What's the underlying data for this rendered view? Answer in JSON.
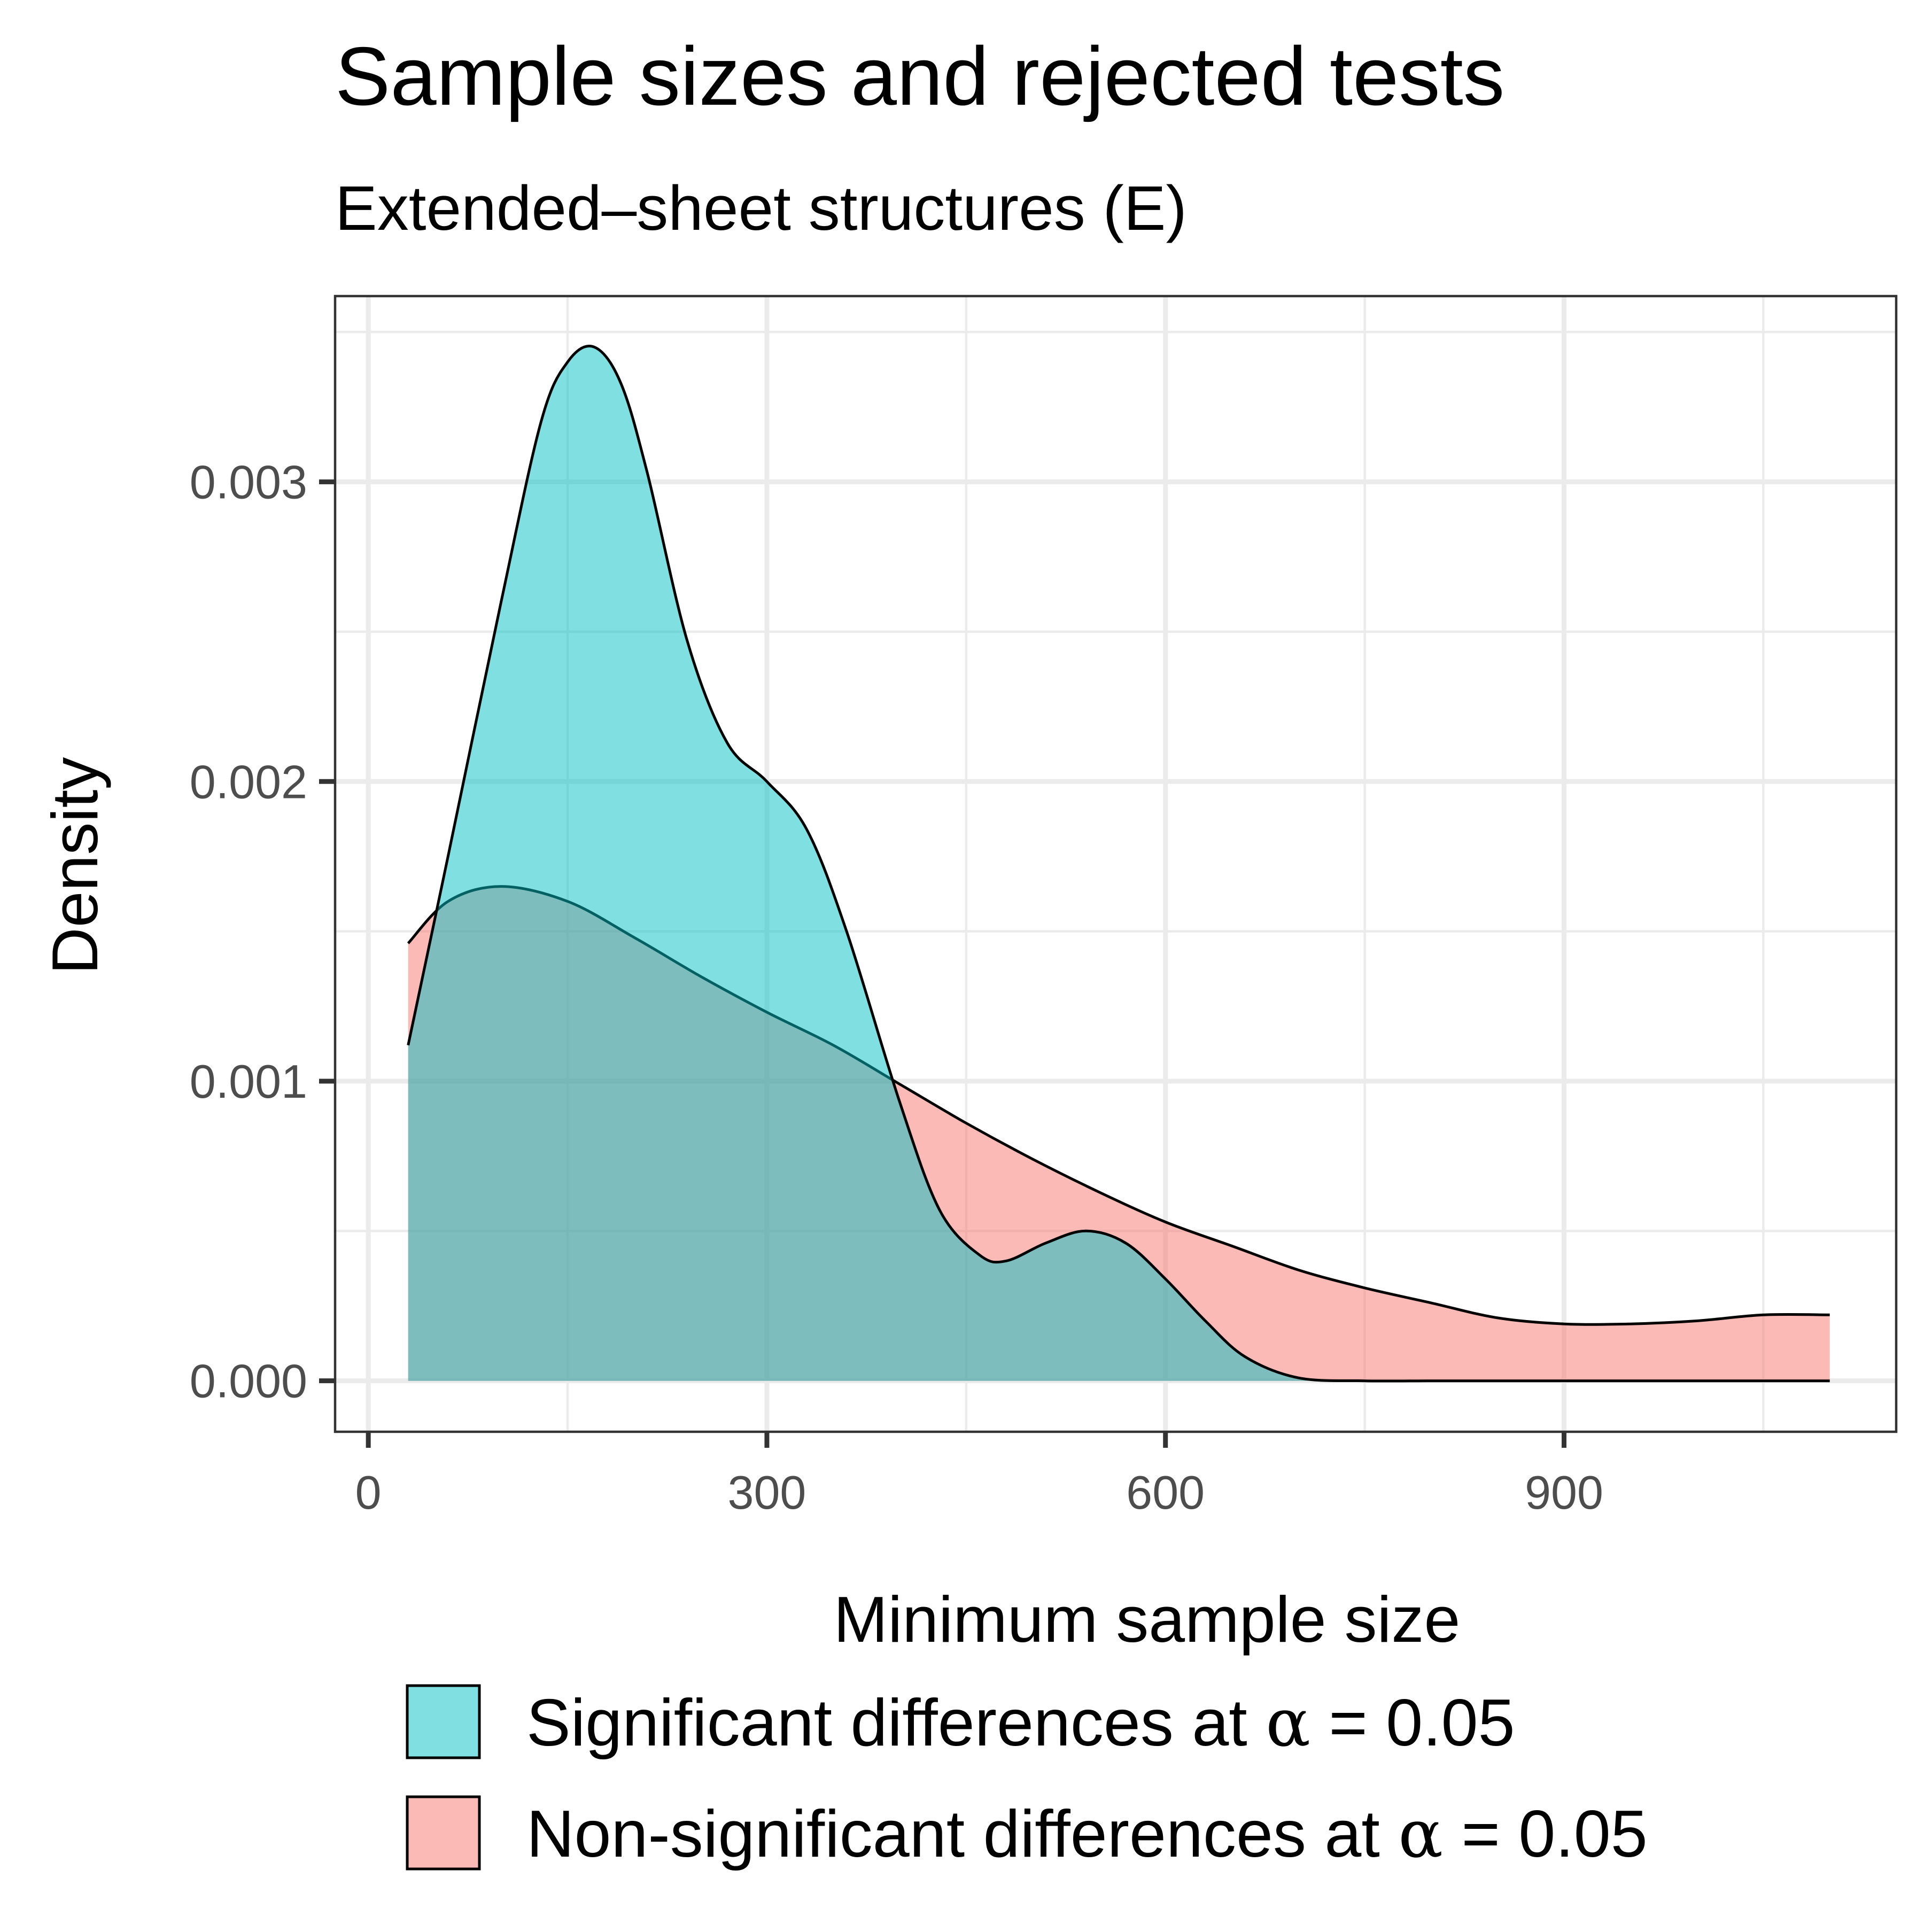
{
  "chart_data": {
    "type": "area",
    "title": "Sample sizes and rejected tests",
    "subtitle": "Extended–sheet structures (E)",
    "xlabel": "Minimum sample size",
    "ylabel": "Density",
    "xlim": [
      -25,
      1150
    ],
    "ylim": [
      -0.00017,
      0.00362
    ],
    "x_ticks": [
      0,
      300,
      600,
      900
    ],
    "x_tick_labels": [
      "0",
      "300",
      "600",
      "900"
    ],
    "y_ticks": [
      0.0,
      0.001,
      0.002,
      0.003
    ],
    "y_tick_labels": [
      "0.000",
      "0.001",
      "0.002",
      "0.003"
    ],
    "grid": true,
    "legend_position": "bottom",
    "series": [
      {
        "name": "Non-significant differences at α = 0.05",
        "legend_text": "Non-significant differences at",
        "fill": "#F8766D",
        "x": [
          30,
          60,
          100,
          150,
          200,
          250,
          300,
          350,
          400,
          450,
          500,
          550,
          600,
          650,
          700,
          750,
          800,
          850,
          900,
          950,
          1000,
          1050,
          1100
        ],
        "y": [
          0.00146,
          0.0016,
          0.00165,
          0.0016,
          0.00148,
          0.00135,
          0.00123,
          0.00112,
          0.00099,
          0.00086,
          0.00074,
          0.00063,
          0.00053,
          0.00045,
          0.00037,
          0.00031,
          0.00026,
          0.00021,
          0.00019,
          0.00019,
          0.0002,
          0.00022,
          0.00022
        ]
      },
      {
        "name": "Significant differences at α = 0.05",
        "legend_text": "Significant differences at",
        "fill": "#00BFC4",
        "x": [
          30,
          60,
          100,
          130,
          150,
          170,
          190,
          210,
          240,
          270,
          300,
          330,
          360,
          400,
          430,
          460,
          480,
          510,
          540,
          570,
          600,
          630,
          660,
          700,
          750,
          800,
          850,
          900,
          950,
          1000,
          1050,
          1100
        ],
        "y": [
          0.00112,
          0.00175,
          0.0026,
          0.0032,
          0.0034,
          0.00345,
          0.00333,
          0.00303,
          0.00247,
          0.00213,
          0.002,
          0.00184,
          0.0015,
          0.00093,
          0.00057,
          0.00042,
          0.0004,
          0.00046,
          0.0005,
          0.00046,
          0.00034,
          0.0002,
          8e-05,
          1e-05,
          0.0,
          0.0,
          0.0,
          0.0,
          0.0,
          0.0,
          0.0,
          0.0
        ]
      }
    ],
    "legend": {
      "symbol": "α",
      "equals": "=",
      "value": "0.05"
    },
    "colors": {
      "significant": "#00BFC4",
      "non_significant": "#F8766D",
      "outline": "#000000"
    }
  }
}
